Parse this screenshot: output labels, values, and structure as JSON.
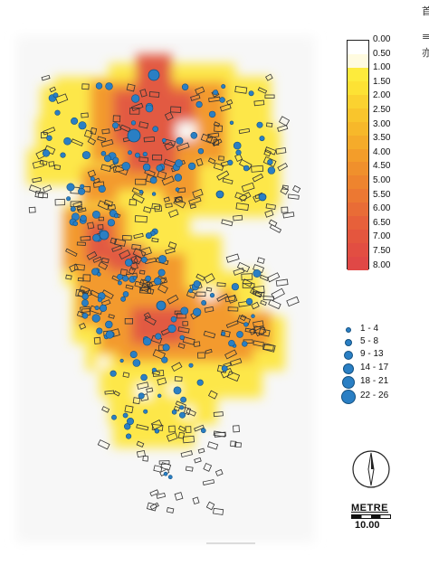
{
  "density_legend": {
    "labels": [
      "0.00",
      "0.50",
      "1.00",
      "1.50",
      "2.00",
      "2.50",
      "3.00",
      "3.50",
      "4.00",
      "4.50",
      "5.00",
      "5.50",
      "6.00",
      "6.50",
      "7.00",
      "7.50",
      "8.00"
    ],
    "colors": [
      "#ffffff",
      "#fffbe0",
      "#fdeb3c",
      "#fde234",
      "#fbd230",
      "#f9c52c",
      "#f7b82a",
      "#f5ab2a",
      "#f39d2a",
      "#f0902c",
      "#ee842e",
      "#ec7832",
      "#e96c36",
      "#e7603a",
      "#e4563e",
      "#e24e42",
      "#e04846"
    ]
  },
  "dot_legend": {
    "color": "#2a7fc4",
    "items": [
      {
        "label": "1 - 4"
      },
      {
        "label": "5 - 8"
      },
      {
        "label": "9 - 13"
      },
      {
        "label": "14 - 17"
      },
      {
        "label": "18 - 21"
      },
      {
        "label": "22 - 26"
      }
    ]
  },
  "scale": {
    "title": "METRE",
    "value": "10.00"
  },
  "north_icon": "north-arrow-icon",
  "map_colors": {
    "light_yellow": "#fde74a",
    "orange": "#f39a2e",
    "red": "#e25a42",
    "dot": "#2a7fc4"
  }
}
